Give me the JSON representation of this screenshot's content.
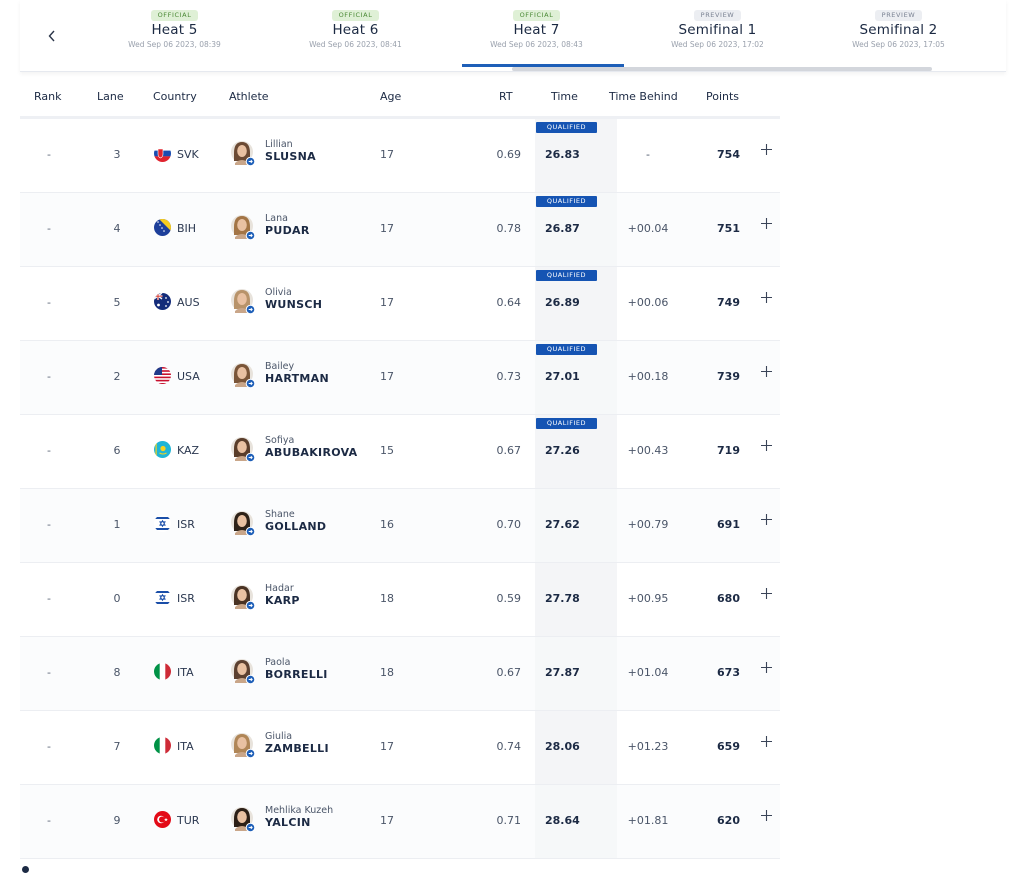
{
  "nav": {
    "prev_icon": "chevron-left-icon"
  },
  "tabs": [
    {
      "status": "OFFICIAL",
      "type": "official",
      "title": "Heat 5",
      "date": "Wed Sep 06 2023, 08:39"
    },
    {
      "status": "OFFICIAL",
      "type": "official",
      "title": "Heat 6",
      "date": "Wed Sep 06 2023, 08:41"
    },
    {
      "status": "OFFICIAL",
      "type": "official",
      "title": "Heat 7",
      "date": "Wed Sep 06 2023, 08:43",
      "active": true
    },
    {
      "status": "PREVIEW",
      "type": "preview",
      "title": "Semifinal 1",
      "date": "Wed Sep 06 2023, 17:02"
    },
    {
      "status": "PREVIEW",
      "type": "preview",
      "title": "Semifinal 2",
      "date": "Wed Sep 06 2023, 17:05"
    }
  ],
  "columns": {
    "rank": "Rank",
    "lane": "Lane",
    "country": "Country",
    "athlete": "Athlete",
    "age": "Age",
    "rt": "RT",
    "time": "Time",
    "behind": "Time Behind",
    "points": "Points"
  },
  "qualified_label": "QUALIFIED",
  "rows": [
    {
      "rank": "-",
      "lane": "3",
      "country": "SVK",
      "flag": "svk",
      "first": "Lillian",
      "last": "SLUSNA",
      "age": "17",
      "rt": "0.69",
      "time": "26.83",
      "behind": "-",
      "points": "754",
      "qualified": true
    },
    {
      "rank": "-",
      "lane": "4",
      "country": "BIH",
      "flag": "bih",
      "first": "Lana",
      "last": "PUDAR",
      "age": "17",
      "rt": "0.78",
      "time": "26.87",
      "behind": "+00.04",
      "points": "751",
      "qualified": true
    },
    {
      "rank": "-",
      "lane": "5",
      "country": "AUS",
      "flag": "aus",
      "first": "Olivia",
      "last": "WUNSCH",
      "age": "17",
      "rt": "0.64",
      "time": "26.89",
      "behind": "+00.06",
      "points": "749",
      "qualified": true
    },
    {
      "rank": "-",
      "lane": "2",
      "country": "USA",
      "flag": "usa",
      "first": "Bailey",
      "last": "HARTMAN",
      "age": "17",
      "rt": "0.73",
      "time": "27.01",
      "behind": "+00.18",
      "points": "739",
      "qualified": true
    },
    {
      "rank": "-",
      "lane": "6",
      "country": "KAZ",
      "flag": "kaz",
      "first": "Sofiya",
      "last": "ABUBAKIROVA",
      "age": "15",
      "rt": "0.67",
      "time": "27.26",
      "behind": "+00.43",
      "points": "719",
      "qualified": true
    },
    {
      "rank": "-",
      "lane": "1",
      "country": "ISR",
      "flag": "isr",
      "first": "Shane",
      "last": "GOLLAND",
      "age": "16",
      "rt": "0.70",
      "time": "27.62",
      "behind": "+00.79",
      "points": "691",
      "qualified": false
    },
    {
      "rank": "-",
      "lane": "0",
      "country": "ISR",
      "flag": "isr",
      "first": "Hadar",
      "last": "KARP",
      "age": "18",
      "rt": "0.59",
      "time": "27.78",
      "behind": "+00.95",
      "points": "680",
      "qualified": false
    },
    {
      "rank": "-",
      "lane": "8",
      "country": "ITA",
      "flag": "ita",
      "first": "Paola",
      "last": "BORRELLI",
      "age": "18",
      "rt": "0.67",
      "time": "27.87",
      "behind": "+01.04",
      "points": "673",
      "qualified": false
    },
    {
      "rank": "-",
      "lane": "7",
      "country": "ITA",
      "flag": "ita",
      "first": "Giulia",
      "last": "ZAMBELLI",
      "age": "17",
      "rt": "0.74",
      "time": "28.06",
      "behind": "+01.23",
      "points": "659",
      "qualified": false
    },
    {
      "rank": "-",
      "lane": "9",
      "country": "TUR",
      "flag": "tur",
      "first": "Mehlika Kuzeh",
      "last": "YALCIN",
      "age": "17",
      "rt": "0.71",
      "time": "28.64",
      "behind": "+01.81",
      "points": "620",
      "qualified": false
    }
  ],
  "colors": {
    "accent": "#1e5fb8",
    "qualified": "#1554b3",
    "official_badge": "#dff0d6",
    "preview_badge": "#eceef2"
  }
}
